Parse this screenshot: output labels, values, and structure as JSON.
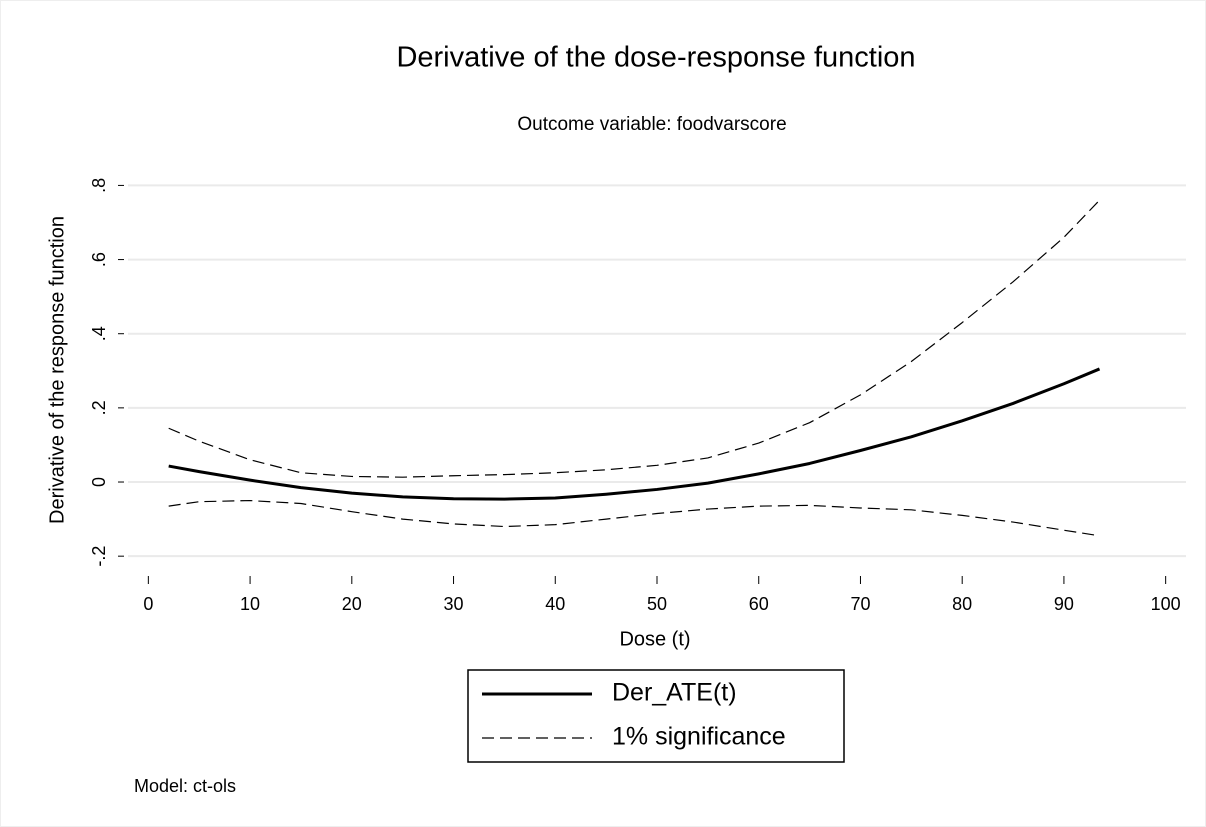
{
  "chart_data": {
    "type": "line",
    "title": "Derivative of the dose-response function",
    "subtitle": "Outcome variable: foodvarscore",
    "xlabel": "Dose (t)",
    "ylabel": "Derivative of the response function",
    "note": "Model: ct-ols",
    "x": [
      2,
      5,
      10,
      15,
      20,
      25,
      30,
      35,
      40,
      45,
      50,
      55,
      60,
      65,
      70,
      75,
      80,
      85,
      90,
      93.5
    ],
    "series": [
      {
        "name": "Der_ATE(t)",
        "color": "#000000",
        "style": "solid",
        "values": [
          0.043,
          0.028,
          0.005,
          -0.015,
          -0.03,
          -0.04,
          -0.045,
          -0.046,
          -0.043,
          -0.033,
          -0.02,
          -0.003,
          0.022,
          0.05,
          0.085,
          0.122,
          0.165,
          0.212,
          0.265,
          0.305
        ]
      },
      {
        "name": "1% significance",
        "color": "#000000",
        "style": "dashed",
        "values": [
          0.145,
          0.11,
          0.06,
          0.025,
          0.015,
          0.013,
          0.017,
          0.02,
          0.025,
          0.033,
          0.045,
          0.065,
          0.105,
          0.16,
          0.235,
          0.325,
          0.43,
          0.54,
          0.66,
          0.76
        ]
      },
      {
        "color": "#000000",
        "style": "dashed",
        "values": [
          -0.065,
          -0.053,
          -0.05,
          -0.058,
          -0.08,
          -0.1,
          -0.113,
          -0.12,
          -0.115,
          -0.1,
          -0.085,
          -0.073,
          -0.065,
          -0.063,
          -0.07,
          -0.075,
          -0.09,
          -0.108,
          -0.13,
          -0.145
        ]
      }
    ],
    "xlim": [
      -2,
      102
    ],
    "xticks": [
      0,
      10,
      20,
      30,
      40,
      50,
      60,
      70,
      80,
      90,
      100
    ],
    "ylim": [
      -0.24,
      0.82
    ],
    "yticks": [
      {
        "value": -0.2,
        "label": "-.2"
      },
      0,
      {
        "value": 0.2,
        "label": ".2"
      },
      {
        "value": 0.4,
        "label": ".4"
      },
      {
        "value": 0.6,
        "label": ".6"
      },
      {
        "value": 0.8,
        "label": ".8"
      }
    ],
    "grid": true,
    "legend": "bottom"
  }
}
